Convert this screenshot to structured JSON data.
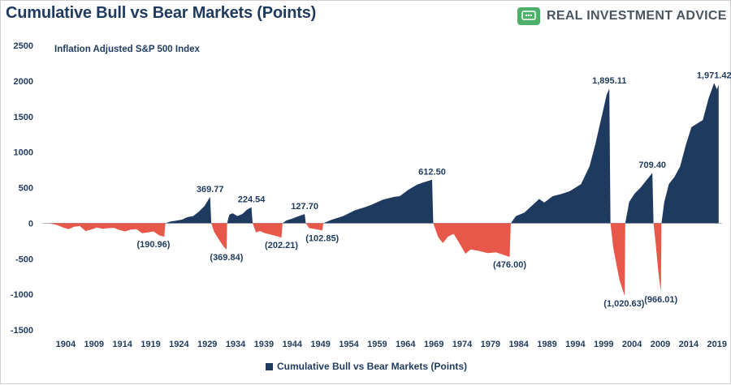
{
  "header": {
    "title": "Cumulative Bull vs Bear Markets (Points)",
    "brand_name": "REAL INVESTMENT ADVICE",
    "brand_icon": "chat-bubble-icon",
    "brand_color": "#4caf6a"
  },
  "chart_data": {
    "type": "area",
    "subtitle": "Inflation Adjusted S&P 500 Index",
    "xlabel": "",
    "ylabel": "",
    "xlim": [
      1900,
      2019.9
    ],
    "ylim": [
      -1500,
      2500
    ],
    "y_ticks": [
      2500,
      2000,
      1500,
      1000,
      500,
      0,
      -500,
      -1000,
      -1500
    ],
    "x_ticks": [
      "1904",
      "1909",
      "1914",
      "1919",
      "1924",
      "1929",
      "1934",
      "1939",
      "1944",
      "1949",
      "1954",
      "1959",
      "1964",
      "1969",
      "1974",
      "1979",
      "1984",
      "1989",
      "1994",
      "1999",
      "2004",
      "2009",
      "2014",
      "2019"
    ],
    "grid": false,
    "legend": {
      "position": "bottom",
      "label": "Cumulative Bull vs Bear Markets (Points)"
    },
    "colors": {
      "bull": "#1f3a5f",
      "bear": "#e8584a"
    },
    "phases": [
      {
        "kind": "bear",
        "start": 1901.0,
        "end": 1921.6,
        "extreme": -190.96,
        "points": [
          [
            1901.0,
            0
          ],
          [
            1902.5,
            -25
          ],
          [
            1903.5,
            -60
          ],
          [
            1904.5,
            -85
          ],
          [
            1905.5,
            -50
          ],
          [
            1906.5,
            -40
          ],
          [
            1907.5,
            -110
          ],
          [
            1908.5,
            -90
          ],
          [
            1909.5,
            -60
          ],
          [
            1910.5,
            -80
          ],
          [
            1911.5,
            -70
          ],
          [
            1912.5,
            -65
          ],
          [
            1913.5,
            -95
          ],
          [
            1914.5,
            -115
          ],
          [
            1915.5,
            -90
          ],
          [
            1916.5,
            -85
          ],
          [
            1917.5,
            -140
          ],
          [
            1918.5,
            -130
          ],
          [
            1919.5,
            -115
          ],
          [
            1920.5,
            -170
          ],
          [
            1921.4,
            -191
          ],
          [
            1921.6,
            0
          ]
        ]
      },
      {
        "kind": "bull",
        "start": 1921.6,
        "end": 1929.7,
        "extreme": 369.77,
        "points": [
          [
            1921.6,
            0
          ],
          [
            1922.5,
            25
          ],
          [
            1923.5,
            35
          ],
          [
            1924.5,
            50
          ],
          [
            1925.5,
            85
          ],
          [
            1926.5,
            100
          ],
          [
            1927.5,
            160
          ],
          [
            1928.5,
            240
          ],
          [
            1929.5,
            370
          ],
          [
            1929.7,
            0
          ]
        ]
      },
      {
        "kind": "bear",
        "start": 1929.7,
        "end": 1932.5,
        "extreme": -369.84,
        "points": [
          [
            1929.7,
            0
          ],
          [
            1930.2,
            -120
          ],
          [
            1930.8,
            -200
          ],
          [
            1931.4,
            -270
          ],
          [
            1932.0,
            -340
          ],
          [
            1932.4,
            -370
          ],
          [
            1932.5,
            0
          ]
        ]
      },
      {
        "kind": "bull",
        "start": 1932.5,
        "end": 1937.0,
        "extreme": 224.54,
        "points": [
          [
            1932.5,
            0
          ],
          [
            1932.9,
            120
          ],
          [
            1933.5,
            140
          ],
          [
            1934.3,
            100
          ],
          [
            1935.2,
            130
          ],
          [
            1936.0,
            190
          ],
          [
            1936.8,
            225
          ],
          [
            1937.0,
            0
          ]
        ]
      },
      {
        "kind": "bear",
        "start": 1937.0,
        "end": 1942.3,
        "extreme": -202.21,
        "points": [
          [
            1937.0,
            0
          ],
          [
            1937.6,
            -130
          ],
          [
            1938.3,
            -110
          ],
          [
            1939.2,
            -140
          ],
          [
            1940.2,
            -160
          ],
          [
            1941.2,
            -180
          ],
          [
            1942.1,
            -202
          ],
          [
            1942.3,
            0
          ]
        ]
      },
      {
        "kind": "bull",
        "start": 1942.3,
        "end": 1946.4,
        "extreme": 127.7,
        "points": [
          [
            1942.3,
            0
          ],
          [
            1943.0,
            40
          ],
          [
            1944.0,
            65
          ],
          [
            1945.0,
            95
          ],
          [
            1946.2,
            128
          ],
          [
            1946.4,
            0
          ]
        ]
      },
      {
        "kind": "bear",
        "start": 1946.4,
        "end": 1949.5,
        "extreme": -102.85,
        "points": [
          [
            1946.4,
            0
          ],
          [
            1947.0,
            -70
          ],
          [
            1947.8,
            -80
          ],
          [
            1948.6,
            -90
          ],
          [
            1949.3,
            -103
          ],
          [
            1949.5,
            0
          ]
        ]
      },
      {
        "kind": "bull",
        "start": 1949.5,
        "end": 1968.9,
        "extreme": 612.5,
        "points": [
          [
            1949.5,
            0
          ],
          [
            1951.0,
            50
          ],
          [
            1953.0,
            100
          ],
          [
            1955.0,
            180
          ],
          [
            1957.0,
            230
          ],
          [
            1958.0,
            260
          ],
          [
            1960.0,
            330
          ],
          [
            1962.0,
            370
          ],
          [
            1963.0,
            380
          ],
          [
            1964.5,
            470
          ],
          [
            1966.0,
            540
          ],
          [
            1967.0,
            570
          ],
          [
            1968.7,
            612
          ],
          [
            1968.9,
            0
          ]
        ]
      },
      {
        "kind": "bear",
        "start": 1968.9,
        "end": 1982.6,
        "extreme": -476.0,
        "points": [
          [
            1968.9,
            0
          ],
          [
            1969.8,
            -200
          ],
          [
            1970.6,
            -280
          ],
          [
            1971.5,
            -190
          ],
          [
            1972.5,
            -150
          ],
          [
            1973.5,
            -280
          ],
          [
            1974.6,
            -430
          ],
          [
            1975.5,
            -370
          ],
          [
            1977.0,
            -390
          ],
          [
            1978.5,
            -420
          ],
          [
            1980.0,
            -410
          ],
          [
            1981.5,
            -450
          ],
          [
            1982.4,
            -476
          ],
          [
            1982.6,
            0
          ]
        ]
      },
      {
        "kind": "bull",
        "start": 1982.6,
        "end": 2000.2,
        "extreme": 1895.11,
        "points": [
          [
            1982.6,
            0
          ],
          [
            1983.5,
            100
          ],
          [
            1985.0,
            150
          ],
          [
            1986.5,
            260
          ],
          [
            1987.6,
            340
          ],
          [
            1988.5,
            290
          ],
          [
            1990.0,
            380
          ],
          [
            1991.5,
            410
          ],
          [
            1993.0,
            450
          ],
          [
            1995.0,
            550
          ],
          [
            1996.5,
            800
          ],
          [
            1997.5,
            1100
          ],
          [
            1998.5,
            1450
          ],
          [
            1999.5,
            1800
          ],
          [
            2000.0,
            1895
          ],
          [
            2000.2,
            0
          ]
        ]
      },
      {
        "kind": "bear",
        "start": 2000.2,
        "end": 2002.8,
        "extreme": -1020.63,
        "points": [
          [
            2000.2,
            0
          ],
          [
            2000.7,
            -350
          ],
          [
            2001.3,
            -600
          ],
          [
            2001.8,
            -800
          ],
          [
            2002.4,
            -950
          ],
          [
            2002.7,
            -1021
          ],
          [
            2002.8,
            0
          ]
        ]
      },
      {
        "kind": "bull",
        "start": 2002.8,
        "end": 2007.8,
        "extreme": 709.4,
        "points": [
          [
            2002.8,
            0
          ],
          [
            2003.5,
            300
          ],
          [
            2004.5,
            420
          ],
          [
            2005.5,
            500
          ],
          [
            2006.5,
            600
          ],
          [
            2007.6,
            709
          ],
          [
            2007.8,
            0
          ]
        ]
      },
      {
        "kind": "bear",
        "start": 2007.8,
        "end": 2009.2,
        "extreme": -966.01,
        "points": [
          [
            2007.8,
            0
          ],
          [
            2008.2,
            -300
          ],
          [
            2008.6,
            -650
          ],
          [
            2008.9,
            -850
          ],
          [
            2009.1,
            -966
          ],
          [
            2009.2,
            0
          ]
        ]
      },
      {
        "kind": "bull",
        "start": 2009.2,
        "end": 2019.3,
        "extreme": 1971.42,
        "points": [
          [
            2009.2,
            0
          ],
          [
            2009.7,
            300
          ],
          [
            2010.5,
            550
          ],
          [
            2011.5,
            650
          ],
          [
            2012.5,
            800
          ],
          [
            2013.5,
            1100
          ],
          [
            2014.5,
            1350
          ],
          [
            2015.5,
            1400
          ],
          [
            2016.5,
            1450
          ],
          [
            2017.5,
            1750
          ],
          [
            2018.5,
            1971
          ],
          [
            2019.0,
            1880
          ],
          [
            2019.3,
            1950
          ],
          [
            2019.3,
            0
          ]
        ]
      }
    ],
    "annotations": [
      {
        "label": "(190.96)",
        "x": 1919.5,
        "y": -190.96
      },
      {
        "label": "369.77",
        "x": 1929.5,
        "y": 369.77
      },
      {
        "label": "(369.84)",
        "x": 1932.4,
        "y": -369.84
      },
      {
        "label": "224.54",
        "x": 1936.8,
        "y": 224.54
      },
      {
        "label": "(202.21)",
        "x": 1942.1,
        "y": -202.21
      },
      {
        "label": "127.70",
        "x": 1946.2,
        "y": 127.7
      },
      {
        "label": "(102.85)",
        "x": 1949.3,
        "y": -102.85
      },
      {
        "label": "612.50",
        "x": 1968.7,
        "y": 612.5
      },
      {
        "label": "(476.00)",
        "x": 1982.4,
        "y": -476.0
      },
      {
        "label": "1,895.11",
        "x": 2000.0,
        "y": 1895.11
      },
      {
        "label": "(1,020.63)",
        "x": 2002.6,
        "y": -1020.63
      },
      {
        "label": "709.40",
        "x": 2007.6,
        "y": 709.4
      },
      {
        "label": "(966.01)",
        "x": 2009.1,
        "y": -966.01
      },
      {
        "label": "1,971.42",
        "x": 2018.5,
        "y": 1971.42
      }
    ]
  }
}
